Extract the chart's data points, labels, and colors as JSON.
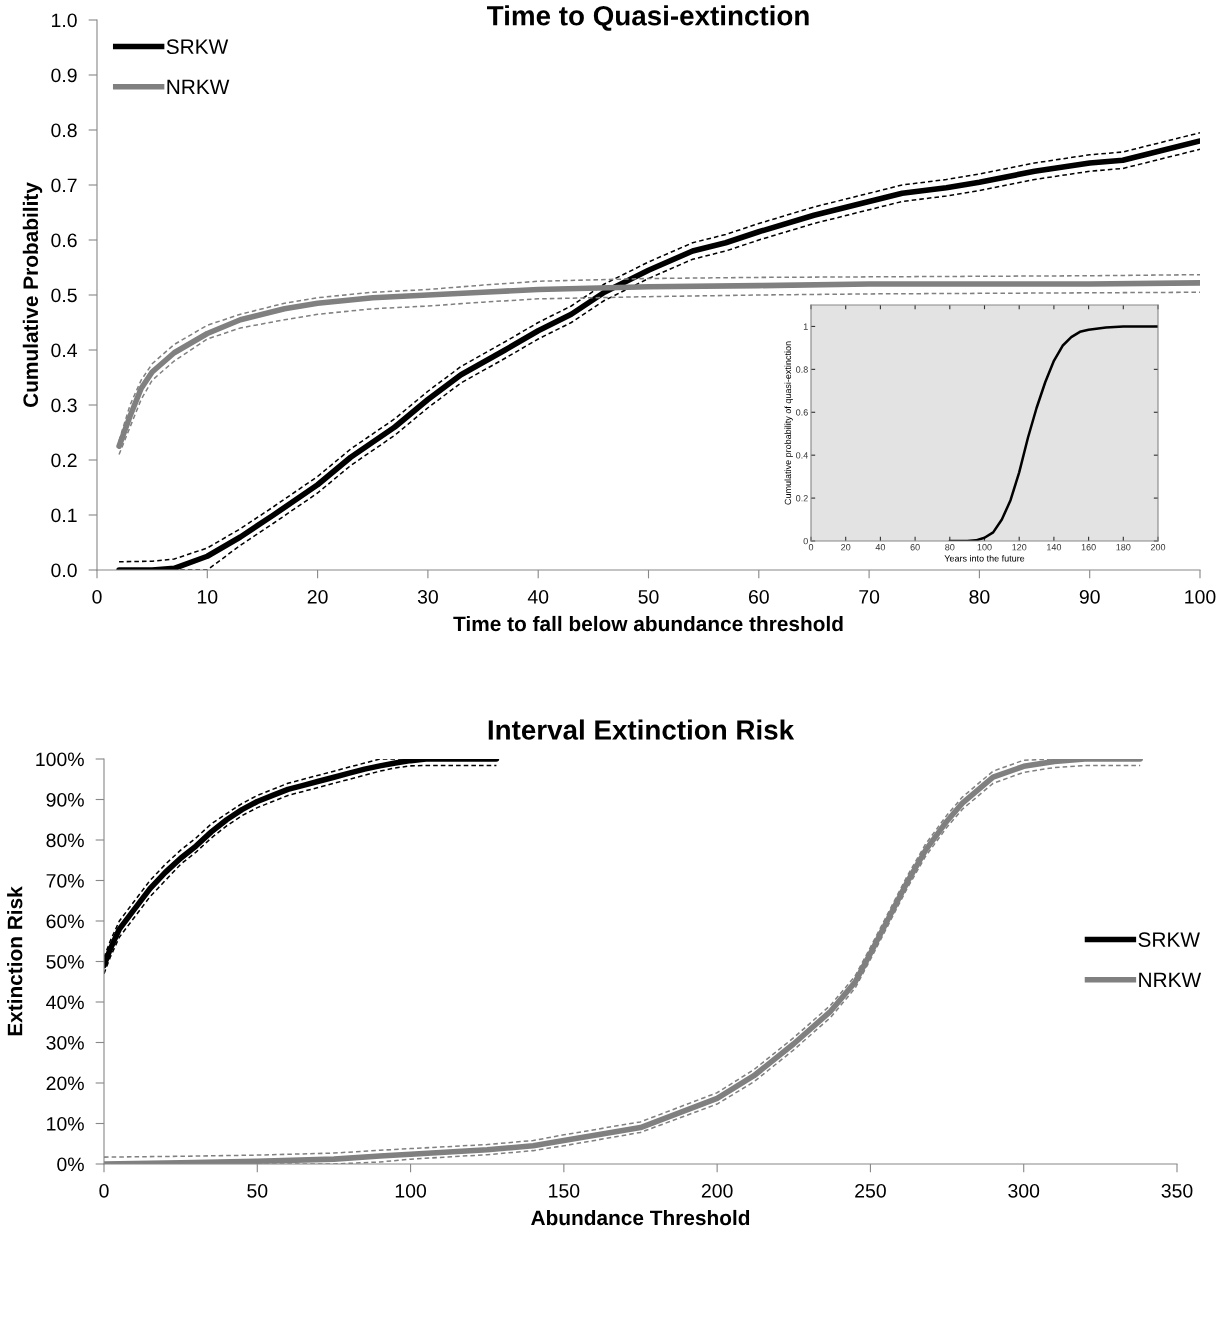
{
  "chart_data": [
    {
      "type": "line",
      "title": "Time to Quasi-extinction",
      "xlabel": "Time to fall below abundance threshold",
      "ylabel": "Cumulative Probability",
      "xlim": [
        0,
        100
      ],
      "ylim": [
        0,
        1
      ],
      "xticks": [
        0,
        10,
        20,
        30,
        40,
        50,
        60,
        70,
        80,
        90,
        100
      ],
      "yticks": [
        {
          "value": 0,
          "label": "0.0"
        },
        0.1,
        0.2,
        0.3,
        0.4,
        0.5,
        0.6,
        0.7,
        0.8,
        0.9,
        {
          "value": 1,
          "label": "1.0"
        }
      ],
      "grid": false,
      "legend": "top left",
      "series": [
        {
          "name": "SRKW",
          "color": "#000000",
          "line_style": "solid",
          "x": [
            2,
            5,
            7,
            10,
            13,
            16,
            20,
            23,
            27,
            30,
            33,
            37,
            40,
            43,
            46,
            50,
            54,
            57,
            60,
            65,
            70,
            73,
            77,
            80,
            85,
            90,
            93,
            95,
            100
          ],
          "values": [
            0,
            0,
            0.003,
            0.025,
            0.06,
            0.1,
            0.155,
            0.205,
            0.26,
            0.31,
            0.355,
            0.4,
            0.435,
            0.465,
            0.505,
            0.545,
            0.58,
            0.595,
            0.615,
            0.645,
            0.67,
            0.685,
            0.695,
            0.705,
            0.725,
            0.74,
            0.745,
            0.755,
            0.78
          ]
        },
        {
          "color": "#000000",
          "line_style": "dashed",
          "x": [
            2,
            5,
            7,
            10,
            13,
            16,
            20,
            23,
            27,
            30,
            33,
            37,
            40,
            43,
            46,
            50,
            54,
            57,
            60,
            65,
            70,
            73,
            77,
            80,
            85,
            90,
            93,
            95,
            100
          ],
          "values": [
            0,
            0,
            0,
            0,
            0.045,
            0.085,
            0.14,
            0.19,
            0.245,
            0.295,
            0.34,
            0.385,
            0.42,
            0.45,
            0.49,
            0.53,
            0.565,
            0.58,
            0.6,
            0.63,
            0.655,
            0.67,
            0.68,
            0.69,
            0.71,
            0.725,
            0.73,
            0.74,
            0.765
          ]
        },
        {
          "color": "#000000",
          "line_style": "dashed",
          "x": [
            2,
            5,
            7,
            10,
            13,
            16,
            20,
            23,
            27,
            30,
            33,
            37,
            40,
            43,
            46,
            50,
            54,
            57,
            60,
            65,
            70,
            73,
            77,
            80,
            85,
            90,
            93,
            95,
            100
          ],
          "values": [
            0.015,
            0.016,
            0.02,
            0.04,
            0.075,
            0.115,
            0.17,
            0.22,
            0.275,
            0.325,
            0.37,
            0.415,
            0.45,
            0.48,
            0.52,
            0.56,
            0.595,
            0.61,
            0.63,
            0.66,
            0.685,
            0.7,
            0.71,
            0.72,
            0.74,
            0.755,
            0.76,
            0.77,
            0.795
          ]
        },
        {
          "name": "NRKW",
          "color": "#808080",
          "line_style": "solid",
          "x": [
            2,
            3,
            4,
            5,
            7,
            10,
            13,
            17,
            20,
            25,
            30,
            35,
            40,
            50,
            60,
            70,
            80,
            90,
            100
          ],
          "values": [
            0.225,
            0.28,
            0.33,
            0.36,
            0.395,
            0.43,
            0.455,
            0.475,
            0.485,
            0.495,
            0.5,
            0.505,
            0.51,
            0.515,
            0.517,
            0.52,
            0.52,
            0.52,
            0.522
          ]
        },
        {
          "color": "#808080",
          "line_style": "dashed",
          "x": [
            2,
            3,
            4,
            5,
            7,
            10,
            13,
            17,
            20,
            25,
            30,
            35,
            40,
            50,
            60,
            70,
            80,
            90,
            100
          ],
          "values": [
            0.21,
            0.26,
            0.31,
            0.345,
            0.38,
            0.42,
            0.44,
            0.455,
            0.465,
            0.475,
            0.48,
            0.487,
            0.493,
            0.497,
            0.5,
            0.502,
            0.503,
            0.504,
            0.505
          ]
        },
        {
          "color": "#808080",
          "line_style": "dashed",
          "x": [
            2,
            3,
            4,
            5,
            7,
            10,
            13,
            17,
            20,
            25,
            30,
            35,
            40,
            50,
            60,
            70,
            80,
            90,
            100
          ],
          "values": [
            0.235,
            0.3,
            0.345,
            0.375,
            0.41,
            0.445,
            0.465,
            0.485,
            0.495,
            0.505,
            0.51,
            0.518,
            0.525,
            0.53,
            0.532,
            0.533,
            0.534,
            0.535,
            0.537
          ]
        }
      ]
    },
    {
      "type": "line",
      "xlabel": "Years into the future",
      "ylabel": "Cumulative probability of quasi-extinction",
      "xlim": [
        0,
        200
      ],
      "ylim": [
        0,
        1.1
      ],
      "xticks": [
        0,
        20,
        40,
        60,
        80,
        100,
        120,
        140,
        160,
        180,
        200
      ],
      "yticks": [
        0,
        0.2,
        0.4,
        0.6,
        0.8,
        1
      ],
      "grid": false,
      "series": [
        {
          "color": "#000000",
          "line_style": "solid",
          "x": [
            80,
            90,
            95,
            100,
            105,
            110,
            115,
            120,
            125,
            130,
            135,
            140,
            145,
            150,
            155,
            160,
            170,
            180,
            200
          ],
          "values": [
            0,
            0,
            0.003,
            0.015,
            0.04,
            0.1,
            0.19,
            0.32,
            0.48,
            0.62,
            0.74,
            0.84,
            0.91,
            0.95,
            0.975,
            0.985,
            0.995,
            1,
            1
          ]
        }
      ]
    },
    {
      "type": "line",
      "title": "Interval Extinction Risk",
      "xlabel": "Abundance Threshold",
      "ylabel": "Extinction Risk",
      "xlim": [
        0,
        350
      ],
      "ylim": [
        0,
        100
      ],
      "xticks": [
        0,
        50,
        100,
        150,
        200,
        250,
        300,
        350
      ],
      "yticks": [
        {
          "value": 0,
          "label": "0%"
        },
        {
          "value": 10,
          "label": "10%"
        },
        {
          "value": 20,
          "label": "20%"
        },
        {
          "value": 30,
          "label": "30%"
        },
        {
          "value": 40,
          "label": "40%"
        },
        {
          "value": 50,
          "label": "50%"
        },
        {
          "value": 60,
          "label": "60%"
        },
        {
          "value": 70,
          "label": "70%"
        },
        {
          "value": 80,
          "label": "80%"
        },
        {
          "value": 90,
          "label": "90%"
        },
        {
          "value": 100,
          "label": "100%"
        }
      ],
      "grid": false,
      "legend": "right",
      "series": [
        {
          "name": "SRKW",
          "color": "#000000",
          "line_style": "solid",
          "x": [
            0,
            2,
            5,
            10,
            15,
            20,
            25,
            30,
            35,
            40,
            45,
            50,
            55,
            60,
            65,
            70,
            75,
            80,
            85,
            90,
            95,
            100,
            105,
            128
          ],
          "values": [
            49,
            53,
            58,
            63,
            68,
            72,
            75.5,
            78.5,
            82,
            85,
            87.5,
            89.5,
            91,
            92.5,
            93.5,
            94.5,
            95.5,
            96.5,
            97.5,
            98.3,
            99,
            99.6,
            100,
            100
          ]
        },
        {
          "color": "#000000",
          "line_style": "dashed",
          "x": [
            0,
            2,
            5,
            10,
            15,
            20,
            25,
            30,
            35,
            40,
            45,
            50,
            55,
            60,
            65,
            70,
            75,
            80,
            85,
            90,
            95,
            100,
            105,
            128
          ],
          "values": [
            47,
            51,
            56,
            61,
            66,
            70,
            74,
            77,
            80.5,
            83.5,
            86,
            88,
            89.5,
            91,
            92,
            93,
            94,
            95,
            96,
            97,
            97.8,
            98.3,
            98.4,
            98.4
          ]
        },
        {
          "color": "#000000",
          "line_style": "dashed",
          "x": [
            0,
            2,
            5,
            10,
            15,
            20,
            25,
            30,
            35,
            40,
            45,
            50,
            55,
            60,
            65,
            70,
            75,
            80,
            85,
            90,
            95,
            100,
            105,
            128
          ],
          "values": [
            51,
            55,
            60,
            65,
            70,
            74,
            77.5,
            80.5,
            84,
            86.5,
            89,
            91,
            92.5,
            94,
            95,
            96,
            97,
            98,
            99,
            100,
            100,
            100,
            100,
            100
          ]
        },
        {
          "name": "NRKW",
          "color": "#808080",
          "line_style": "solid",
          "x": [
            0,
            25,
            50,
            75,
            90,
            100,
            125,
            140,
            150,
            175,
            200,
            212,
            225,
            237,
            245,
            250,
            256,
            262,
            268,
            275,
            280,
            290,
            300,
            310,
            320,
            338
          ],
          "values": [
            0,
            0.3,
            0.7,
            1.2,
            2,
            2.4,
            3.5,
            4.5,
            5.8,
            9,
            16.2,
            21.8,
            29.7,
            37.7,
            44.9,
            52,
            60.8,
            69.6,
            77.5,
            84.7,
            89.1,
            95.5,
            98.2,
            99.4,
            100,
            100
          ]
        },
        {
          "color": "#808080",
          "line_style": "dashed",
          "x": [
            0,
            25,
            50,
            75,
            90,
            100,
            125,
            140,
            150,
            175,
            200,
            212,
            225,
            237,
            245,
            250,
            256,
            262,
            268,
            275,
            280,
            290,
            300,
            310,
            320,
            338
          ],
          "values": [
            0,
            0,
            0,
            0,
            0.5,
            1.2,
            2.3,
            3.3,
            4.5,
            7.8,
            14.8,
            20.3,
            28.2,
            36.2,
            43.4,
            50.5,
            59.3,
            68.1,
            76,
            83.2,
            87.6,
            94,
            96.7,
            97.9,
            98.4,
            98.4
          ]
        },
        {
          "color": "#808080",
          "line_style": "dashed",
          "x": [
            0,
            25,
            50,
            75,
            90,
            100,
            125,
            140,
            150,
            175,
            200,
            212,
            225,
            237,
            245,
            250,
            256,
            262,
            268,
            275,
            280,
            290,
            300,
            310,
            320,
            338
          ],
          "values": [
            1.7,
            1.9,
            2.2,
            2.7,
            3.4,
            3.8,
            4.8,
            5.8,
            7.2,
            10.4,
            17.6,
            23.3,
            31.2,
            39.2,
            46.4,
            53.5,
            62.3,
            71.1,
            79,
            86.2,
            90.6,
            97,
            99.7,
            100,
            100,
            100
          ]
        }
      ]
    }
  ]
}
